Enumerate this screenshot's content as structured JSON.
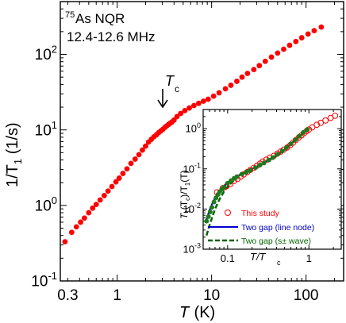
{
  "chart_data": [
    {
      "type": "scatter",
      "title": "",
      "annotation_line1_sup": "75",
      "annotation_line1": "As NQR",
      "annotation_line2": "12.4-12.6 MHz",
      "tc_label": "T",
      "tc_label_sub": "c",
      "xlabel": "T",
      "xlabel_unit": " (K)",
      "ylabel": "1/T",
      "ylabel_sub": "1",
      "ylabel_unit": " (1/s)",
      "xscale": "log",
      "yscale": "log",
      "xlim": [
        0.25,
        250
      ],
      "ylim": [
        0.1,
        500
      ],
      "x_ticks": [
        {
          "value": 0.3,
          "label": "0.3"
        },
        {
          "value": 1,
          "label": "1"
        },
        {
          "value": 10,
          "label": "10"
        },
        {
          "value": 100,
          "label": "100"
        }
      ],
      "y_ticks": [
        {
          "value": 0.1,
          "base": "10",
          "exp": "-1"
        },
        {
          "value": 1,
          "base": "10",
          "exp": "0"
        },
        {
          "value": 10,
          "base": "10",
          "exp": "1"
        },
        {
          "value": 100,
          "base": "10",
          "exp": "2"
        }
      ],
      "marker_color": "#ff0000",
      "tc_value": 3.8,
      "series": [
        {
          "x": [
            0.28,
            0.33,
            0.37,
            0.41,
            0.45,
            0.5,
            0.55,
            0.6,
            0.66,
            0.73,
            0.8,
            0.88,
            0.97,
            1.05,
            1.15,
            1.27,
            1.4,
            1.55,
            1.7,
            1.85,
            2.0,
            2.15,
            2.3,
            2.45,
            2.6,
            2.75,
            2.9,
            3.05,
            3.2,
            3.35,
            3.5,
            3.65,
            3.8,
            4.0,
            4.3,
            4.7,
            5.2,
            5.8,
            6.5,
            7.3,
            8.2,
            9.2,
            10.5,
            12,
            14,
            16,
            18.5,
            21,
            24,
            28,
            32,
            37,
            43,
            50,
            58,
            67,
            78,
            90,
            105,
            122,
            145
          ],
          "y": [
            0.33,
            0.44,
            0.52,
            0.6,
            0.68,
            0.8,
            0.92,
            1.03,
            1.18,
            1.35,
            1.55,
            1.78,
            2.05,
            2.3,
            2.65,
            3.05,
            3.6,
            4.1,
            4.7,
            5.4,
            6.1,
            6.9,
            7.5,
            8.1,
            8.6,
            9.2,
            9.7,
            10.2,
            10.8,
            11.3,
            11.8,
            12.3,
            12.7,
            13.5,
            15,
            16.5,
            18,
            19.5,
            21,
            22.5,
            24,
            25.5,
            28,
            31,
            35,
            39,
            44,
            50,
            56,
            63,
            71,
            81,
            92,
            104,
            117,
            132,
            148,
            166,
            186,
            206,
            230
          ]
        }
      ]
    },
    {
      "type": "line",
      "inset": true,
      "ylabel": "T",
      "ylabel_sub1": "1",
      "ylabel_mid": "(T",
      "ylabel_sub2": "c",
      "ylabel_mid2": ")/T",
      "ylabel_sub3": "1",
      "ylabel_end": "(T)",
      "xlabel": "T/T",
      "xlabel_sub": "c",
      "xscale": "log",
      "yscale": "log",
      "xlim": [
        0.05,
        2.5
      ],
      "ylim": [
        0.001,
        3
      ],
      "x_ticks": [
        {
          "value": 0.1,
          "label": "0.1"
        },
        {
          "value": 1,
          "label": "1"
        }
      ],
      "y_ticks": [
        {
          "value": 0.001,
          "base": "10",
          "exp": "-3"
        },
        {
          "value": 0.01,
          "base": "10",
          "exp": "-2"
        },
        {
          "value": 0.1,
          "base": "10",
          "exp": "-1"
        },
        {
          "value": 1,
          "base": "10",
          "exp": "0"
        }
      ],
      "legend_position": "bottom-right",
      "series": [
        {
          "name": "This study",
          "style": "open-circle",
          "color": "#ff0000",
          "x": [
            0.074,
            0.087,
            0.097,
            0.108,
            0.12,
            0.132,
            0.145,
            0.158,
            0.174,
            0.19,
            0.21,
            0.23,
            0.25,
            0.27,
            0.3,
            0.33,
            0.37,
            0.41,
            0.45,
            0.49,
            0.54,
            0.59,
            0.64,
            0.69,
            0.75,
            0.81,
            0.87,
            0.93,
            1.0,
            1.1,
            1.25,
            1.4,
            1.6,
            1.85,
            2.1
          ],
          "y": [
            0.026,
            0.033,
            0.037,
            0.042,
            0.05,
            0.056,
            0.064,
            0.073,
            0.083,
            0.094,
            0.106,
            0.12,
            0.135,
            0.152,
            0.17,
            0.19,
            0.21,
            0.24,
            0.27,
            0.3,
            0.34,
            0.39,
            0.45,
            0.52,
            0.6,
            0.68,
            0.77,
            0.86,
            0.95,
            1.08,
            1.25,
            1.4,
            1.6,
            1.85,
            2.1
          ]
        },
        {
          "name": "Two gap (line node)",
          "style": "solid",
          "color": "#0000cc",
          "x": [
            0.055,
            0.06,
            0.065,
            0.07,
            0.08,
            0.09,
            0.1,
            0.12,
            0.14,
            0.17,
            0.2,
            0.25,
            0.3,
            0.4,
            0.5,
            0.6,
            0.7,
            0.8,
            0.9,
            1.0
          ],
          "y": [
            0.0055,
            0.0095,
            0.014,
            0.019,
            0.028,
            0.036,
            0.045,
            0.058,
            0.07,
            0.085,
            0.1,
            0.125,
            0.155,
            0.22,
            0.3,
            0.42,
            0.56,
            0.7,
            0.85,
            1.0
          ]
        },
        {
          "name": "Two gap (s± wave)",
          "style": "dashed",
          "color": "#006400",
          "x": [
            0.055,
            0.06,
            0.065,
            0.07,
            0.08,
            0.09,
            0.1,
            0.12,
            0.14,
            0.17,
            0.2,
            0.25,
            0.3,
            0.4,
            0.5,
            0.6,
            0.7,
            0.8,
            0.9,
            1.0
          ],
          "y": [
            0.0022,
            0.004,
            0.0065,
            0.01,
            0.018,
            0.027,
            0.036,
            0.052,
            0.066,
            0.082,
            0.098,
            0.123,
            0.152,
            0.215,
            0.295,
            0.41,
            0.55,
            0.69,
            0.84,
            1.0
          ]
        },
        {
          "name": "",
          "style": "filled-circle",
          "color": "#1e7a1e",
          "x": [
            0.055,
            0.058,
            0.061,
            0.064,
            0.068,
            0.072,
            0.076,
            0.08,
            0.085,
            0.09,
            0.1,
            0.11,
            0.12,
            0.13,
            0.15,
            0.17,
            0.19,
            0.22,
            0.25,
            0.28,
            0.32,
            0.36,
            0.41,
            0.47,
            0.53,
            0.6,
            0.68,
            0.76,
            0.85,
            0.95
          ],
          "y": [
            0.005,
            0.0065,
            0.0085,
            0.011,
            0.015,
            0.019,
            0.023,
            0.027,
            0.031,
            0.035,
            0.044,
            0.051,
            0.058,
            0.064,
            0.074,
            0.083,
            0.092,
            0.107,
            0.124,
            0.14,
            0.165,
            0.19,
            0.23,
            0.28,
            0.34,
            0.42,
            0.53,
            0.65,
            0.8,
            0.95
          ]
        }
      ]
    }
  ]
}
